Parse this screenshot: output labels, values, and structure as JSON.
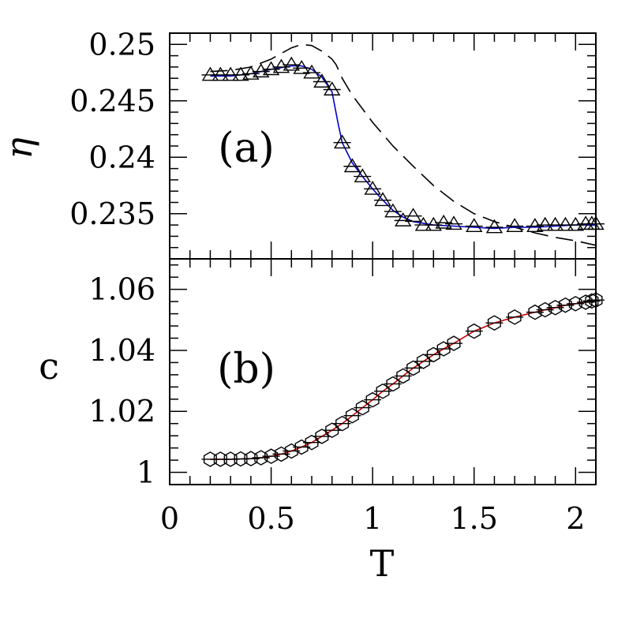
{
  "chart_data": [
    {
      "type": "line",
      "panel_label": "(a)",
      "xlabel": "",
      "ylabel": "η",
      "xlim": [
        0,
        2.1
      ],
      "ylim": [
        0.231,
        0.251
      ],
      "xticks": [
        0,
        0.5,
        1,
        1.5,
        2
      ],
      "yticks": [
        0.235,
        0.24,
        0.245,
        0.25
      ],
      "ytick_labels": [
        "0.235",
        "0.24",
        "0.245",
        "0.25"
      ],
      "marker": "triangle",
      "line_color": "#0000cc",
      "points": {
        "x": [
          0.2,
          0.25,
          0.3,
          0.35,
          0.4,
          0.45,
          0.5,
          0.55,
          0.6,
          0.65,
          0.7,
          0.75,
          0.8,
          0.85,
          0.9,
          0.95,
          1.0,
          1.05,
          1.1,
          1.15,
          1.2,
          1.25,
          1.3,
          1.35,
          1.4,
          1.5,
          1.6,
          1.7,
          1.8,
          1.85,
          1.9,
          1.95,
          2.0,
          2.05,
          2.08,
          2.1
        ],
        "y": [
          0.2473,
          0.2473,
          0.2473,
          0.2473,
          0.2474,
          0.2476,
          0.2478,
          0.248,
          0.2482,
          0.2479,
          0.2475,
          0.2467,
          0.246,
          0.2413,
          0.2392,
          0.2383,
          0.2372,
          0.2362,
          0.2352,
          0.2344,
          0.2348,
          0.234,
          0.234,
          0.2342,
          0.2341,
          0.2339,
          0.2338,
          0.2339,
          0.2339,
          0.234,
          0.234,
          0.234,
          0.234,
          0.2341,
          0.2341,
          0.2341
        ]
      },
      "fit": {
        "x": [
          0.2,
          0.3,
          0.4,
          0.5,
          0.6,
          0.65,
          0.7,
          0.75,
          0.8,
          0.83,
          0.85,
          0.9,
          0.95,
          1.0,
          1.05,
          1.1,
          1.15,
          1.2,
          1.3,
          1.4,
          1.5,
          1.6,
          1.7,
          1.8,
          1.9,
          2.0,
          2.1
        ],
        "y": [
          0.2472,
          0.2472,
          0.2474,
          0.2478,
          0.2481,
          0.2481,
          0.2478,
          0.2471,
          0.2458,
          0.243,
          0.2413,
          0.2395,
          0.2383,
          0.2372,
          0.2362,
          0.2353,
          0.2347,
          0.2343,
          0.234,
          0.2339,
          0.2338,
          0.2337,
          0.2338,
          0.2338,
          0.2339,
          0.234,
          0.234
        ]
      },
      "dashed": {
        "x": [
          0.2,
          0.3,
          0.4,
          0.5,
          0.55,
          0.6,
          0.65,
          0.7,
          0.75,
          0.8,
          0.82,
          0.85,
          0.9,
          1.0,
          1.1,
          1.2,
          1.3,
          1.4,
          1.5,
          1.6,
          1.7,
          1.8,
          1.9,
          2.0,
          2.1
        ],
        "y": [
          0.2476,
          0.2477,
          0.248,
          0.2487,
          0.2492,
          0.2497,
          0.25,
          0.2499,
          0.2494,
          0.2487,
          0.2482,
          0.247,
          0.2455,
          0.2431,
          0.241,
          0.2392,
          0.2375,
          0.2361,
          0.235,
          0.2343,
          0.2338,
          0.2333,
          0.2329,
          0.2326,
          0.2322
        ]
      }
    },
    {
      "type": "line",
      "panel_label": "(b)",
      "xlabel": "T",
      "ylabel": "c",
      "xlim": [
        0,
        2.1
      ],
      "ylim": [
        0.996,
        1.07
      ],
      "xticks": [
        0,
        0.5,
        1,
        1.5,
        2
      ],
      "xtick_labels": [
        "0",
        "0.5",
        "1",
        "1.5",
        "2"
      ],
      "yticks": [
        1.0,
        1.02,
        1.04,
        1.06
      ],
      "ytick_labels": [
        "1",
        "1.02",
        "1.04",
        "1.06"
      ],
      "marker": "hexagon",
      "line_color": "#cc0000",
      "points": {
        "x": [
          0.2,
          0.25,
          0.3,
          0.35,
          0.4,
          0.45,
          0.5,
          0.55,
          0.6,
          0.65,
          0.7,
          0.75,
          0.8,
          0.85,
          0.9,
          0.95,
          1.0,
          1.05,
          1.1,
          1.15,
          1.2,
          1.25,
          1.3,
          1.35,
          1.4,
          1.5,
          1.6,
          1.7,
          1.8,
          1.85,
          1.9,
          1.95,
          2.0,
          2.05,
          2.08,
          2.1
        ],
        "y": [
          1.0043,
          1.0043,
          1.0043,
          1.0044,
          1.0045,
          1.0048,
          1.0053,
          1.006,
          1.007,
          1.0083,
          1.0098,
          1.0118,
          1.0138,
          1.016,
          1.0186,
          1.0212,
          1.0238,
          1.0266,
          1.029,
          1.0316,
          1.0342,
          1.0364,
          1.0386,
          1.0405,
          1.0423,
          1.0463,
          1.049,
          1.0509,
          1.0525,
          1.0533,
          1.054,
          1.0548,
          1.0553,
          1.0558,
          1.0562,
          1.0565
        ]
      }
    }
  ]
}
